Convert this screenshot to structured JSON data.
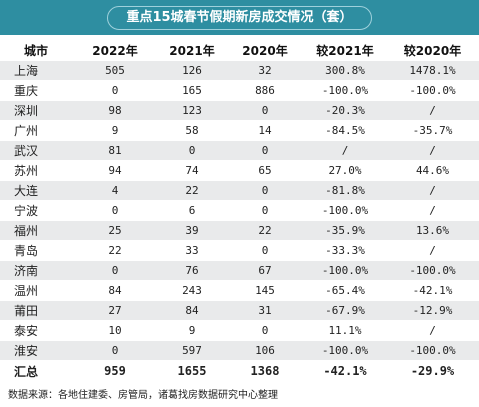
{
  "title": "重点15城春节假期新房成交情况（套）",
  "headers": [
    "城市",
    "2022年",
    "2021年",
    "2020年",
    "较2021年",
    "较2020年"
  ],
  "rows": [
    {
      "city": "上海",
      "y2022": "505",
      "y2021": "126",
      "y2020": "32",
      "vs2021": "300.8%",
      "vs2020": "1478.1%"
    },
    {
      "city": "重庆",
      "y2022": "0",
      "y2021": "165",
      "y2020": "886",
      "vs2021": "-100.0%",
      "vs2020": "-100.0%"
    },
    {
      "city": "深圳",
      "y2022": "98",
      "y2021": "123",
      "y2020": "0",
      "vs2021": "-20.3%",
      "vs2020": "/"
    },
    {
      "city": "广州",
      "y2022": "9",
      "y2021": "58",
      "y2020": "14",
      "vs2021": "-84.5%",
      "vs2020": "-35.7%"
    },
    {
      "city": "武汉",
      "y2022": "81",
      "y2021": "0",
      "y2020": "0",
      "vs2021": "/",
      "vs2020": "/"
    },
    {
      "city": "苏州",
      "y2022": "94",
      "y2021": "74",
      "y2020": "65",
      "vs2021": "27.0%",
      "vs2020": "44.6%"
    },
    {
      "city": "大连",
      "y2022": "4",
      "y2021": "22",
      "y2020": "0",
      "vs2021": "-81.8%",
      "vs2020": "/"
    },
    {
      "city": "宁波",
      "y2022": "0",
      "y2021": "6",
      "y2020": "0",
      "vs2021": "-100.0%",
      "vs2020": "/"
    },
    {
      "city": "福州",
      "y2022": "25",
      "y2021": "39",
      "y2020": "22",
      "vs2021": "-35.9%",
      "vs2020": "13.6%"
    },
    {
      "city": "青岛",
      "y2022": "22",
      "y2021": "33",
      "y2020": "0",
      "vs2021": "-33.3%",
      "vs2020": "/"
    },
    {
      "city": "济南",
      "y2022": "0",
      "y2021": "76",
      "y2020": "67",
      "vs2021": "-100.0%",
      "vs2020": "-100.0%"
    },
    {
      "city": "温州",
      "y2022": "84",
      "y2021": "243",
      "y2020": "145",
      "vs2021": "-65.4%",
      "vs2020": "-42.1%"
    },
    {
      "city": "莆田",
      "y2022": "27",
      "y2021": "84",
      "y2020": "31",
      "vs2021": "-67.9%",
      "vs2020": "-12.9%"
    },
    {
      "city": "泰安",
      "y2022": "10",
      "y2021": "9",
      "y2020": "0",
      "vs2021": "11.1%",
      "vs2020": "/"
    },
    {
      "city": "淮安",
      "y2022": "0",
      "y2021": "597",
      "y2020": "106",
      "vs2021": "-100.0%",
      "vs2020": "-100.0%"
    }
  ],
  "total": {
    "city": "汇总",
    "y2022": "959",
    "y2021": "1655",
    "y2020": "1368",
    "vs2021": "-42.1%",
    "vs2020": "-29.9%"
  },
  "footer": "数据来源：各地住建委、房管局，诸葛找房数据研究中心整理",
  "colors": {
    "title_bar": "#2e8ea1",
    "stripe": "#e9eaeb"
  }
}
